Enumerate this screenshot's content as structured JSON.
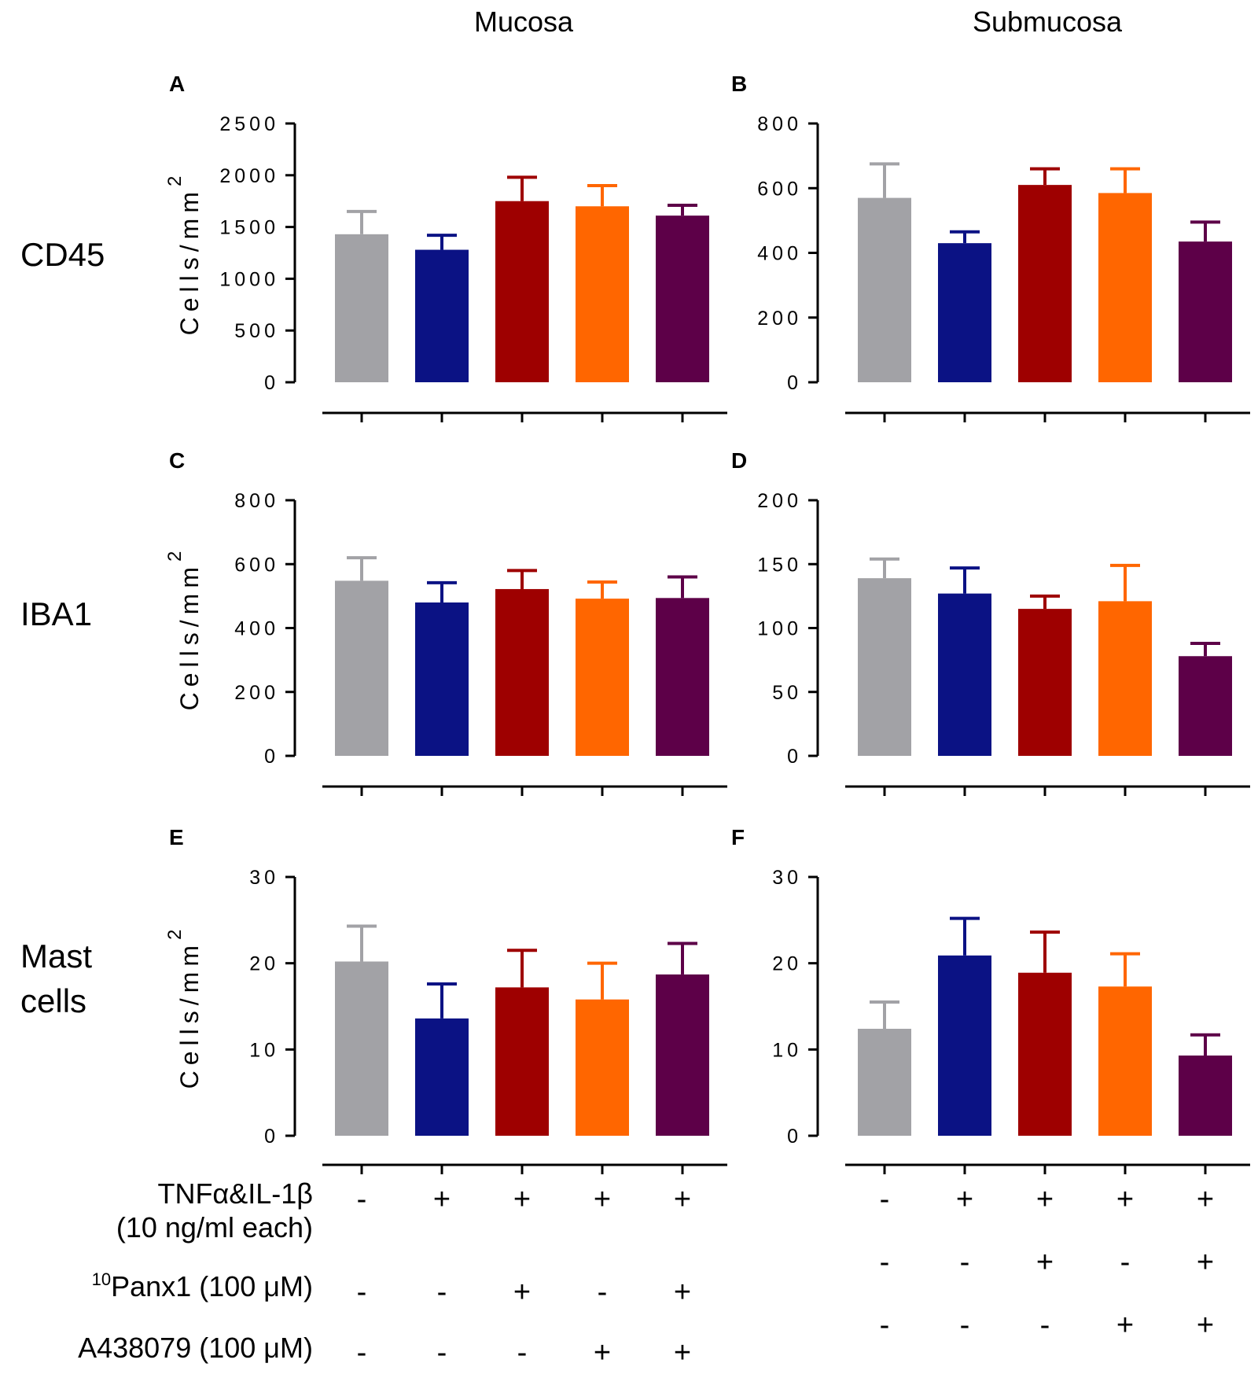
{
  "columns": [
    "Mucosa",
    "Submucosa"
  ],
  "rows": [
    "CD45",
    "IBA1",
    "Mast cells"
  ],
  "colors": [
    "#a2a2a6",
    "#0b1284",
    "#9e0000",
    "#ff6600",
    "#5d0048"
  ],
  "ylabel": "Cells/mm",
  "ylabel_sup": "2",
  "chart_data": [
    {
      "type": "bar",
      "panel": "A",
      "column": "Mucosa",
      "row": "CD45",
      "ylabel": "Cells/mm2",
      "ylim": [
        0,
        2500
      ],
      "yticks": [
        "0",
        "500",
        "1000",
        "1500",
        "2000",
        "2500"
      ],
      "values": [
        1430,
        1280,
        1750,
        1700,
        1610
      ],
      "errors": [
        220,
        140,
        230,
        200,
        100
      ]
    },
    {
      "type": "bar",
      "panel": "B",
      "column": "Submucosa",
      "row": "CD45",
      "ylabel": "",
      "ylim": [
        0,
        800
      ],
      "yticks": [
        "0",
        "200",
        "400",
        "600",
        "800"
      ],
      "values": [
        570,
        430,
        610,
        585,
        435
      ],
      "errors": [
        105,
        35,
        50,
        75,
        60
      ]
    },
    {
      "type": "bar",
      "panel": "C",
      "column": "Mucosa",
      "row": "IBA1",
      "ylabel": "Cells/mm2",
      "ylim": [
        0,
        800
      ],
      "yticks": [
        "0",
        "200",
        "400",
        "600",
        "800"
      ],
      "values": [
        548,
        480,
        522,
        492,
        494
      ],
      "errors": [
        72,
        62,
        58,
        52,
        66
      ]
    },
    {
      "type": "bar",
      "panel": "D",
      "column": "Submucosa",
      "row": "IBA1",
      "ylabel": "",
      "ylim": [
        0,
        200
      ],
      "yticks": [
        "0",
        "50",
        "100",
        "150",
        "200"
      ],
      "values": [
        139,
        127,
        115,
        121,
        78
      ],
      "errors": [
        15,
        20,
        10,
        28,
        10
      ]
    },
    {
      "type": "bar",
      "panel": "E",
      "column": "Mucosa",
      "row": "Mast cells",
      "ylabel": "Cells/mm2",
      "ylim": [
        0,
        30
      ],
      "yticks": [
        "0",
        "10",
        "20",
        "30"
      ],
      "values": [
        20.2,
        13.6,
        17.2,
        15.8,
        18.7
      ],
      "errors": [
        4.1,
        4.0,
        4.3,
        4.2,
        3.6
      ]
    },
    {
      "type": "bar",
      "panel": "F",
      "column": "Submucosa",
      "row": "Mast cells",
      "ylabel": "",
      "ylim": [
        0,
        30
      ],
      "yticks": [
        "0",
        "10",
        "20",
        "30"
      ],
      "values": [
        12.4,
        20.9,
        18.9,
        17.3,
        9.3
      ],
      "errors": [
        3.1,
        4.3,
        4.7,
        3.8,
        2.4
      ]
    }
  ],
  "treatments": [
    {
      "label": [
        "TNFα&IL-1β",
        "(10 ng/ml each)"
      ],
      "signs": [
        "-",
        "+",
        "+",
        "+",
        "+"
      ]
    },
    {
      "label_prefix": "10",
      "label": [
        "Panx1 (100 μM)"
      ],
      "signs": [
        "-",
        "-",
        "+",
        "-",
        "+"
      ]
    },
    {
      "label": [
        "A438079 (100 μM)"
      ],
      "signs": [
        "-",
        "-",
        "-",
        "+",
        "+"
      ]
    }
  ]
}
